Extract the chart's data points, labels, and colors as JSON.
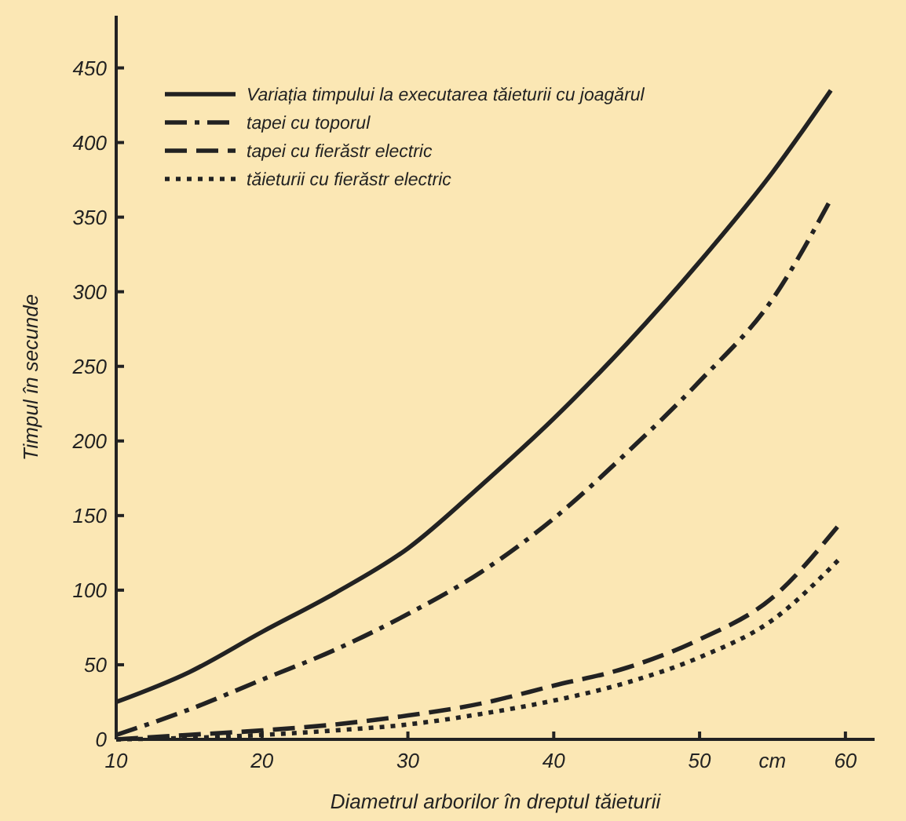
{
  "chart_data": {
    "type": "line",
    "xlabel": "Diametrul arborilor în dreptul tăieturii",
    "ylabel": "Timpul în secunde",
    "annotations": [
      "cm"
    ],
    "x": [
      10,
      15,
      20,
      25,
      30,
      35,
      40,
      45,
      50,
      55,
      59
    ],
    "series": [
      {
        "name": "Variația timpului la executarea tăieturii cu joagărul",
        "color": "#222222",
        "line_style": "solid",
        "values": [
          25,
          45,
          72,
          98,
          128,
          170,
          215,
          265,
          320,
          380,
          435
        ]
      },
      {
        "name": "tapei cu toporul",
        "color": "#222222",
        "line_style": "dashdot",
        "values": [
          3,
          20,
          40,
          60,
          84,
          112,
          148,
          192,
          240,
          295,
          362
        ]
      },
      {
        "name": "tapei cu fierăstr electric",
        "color": "#222222",
        "line_style": "dashed",
        "x": [
          10,
          15,
          20,
          25,
          30,
          35,
          40,
          45,
          50,
          55,
          59.5
        ],
        "values": [
          0,
          3,
          6,
          10,
          16,
          24,
          36,
          48,
          67,
          95,
          143
        ]
      },
      {
        "name": "tăieturii cu fierăstr electric",
        "color": "#222222",
        "line_style": "dotted",
        "x": [
          10,
          15,
          20,
          25,
          30,
          35,
          40,
          45,
          50,
          55,
          59.5
        ],
        "values": [
          0,
          1,
          3,
          6,
          10,
          17,
          26,
          38,
          55,
          80,
          120
        ]
      }
    ],
    "xlim": [
      10,
      62
    ],
    "xticks": [
      10,
      20,
      30,
      40,
      50,
      60
    ],
    "ylim": [
      0,
      485
    ],
    "yticks": [
      0,
      50,
      100,
      150,
      200,
      250,
      300,
      350,
      400,
      450
    ],
    "legend": "top left",
    "grid": false
  }
}
